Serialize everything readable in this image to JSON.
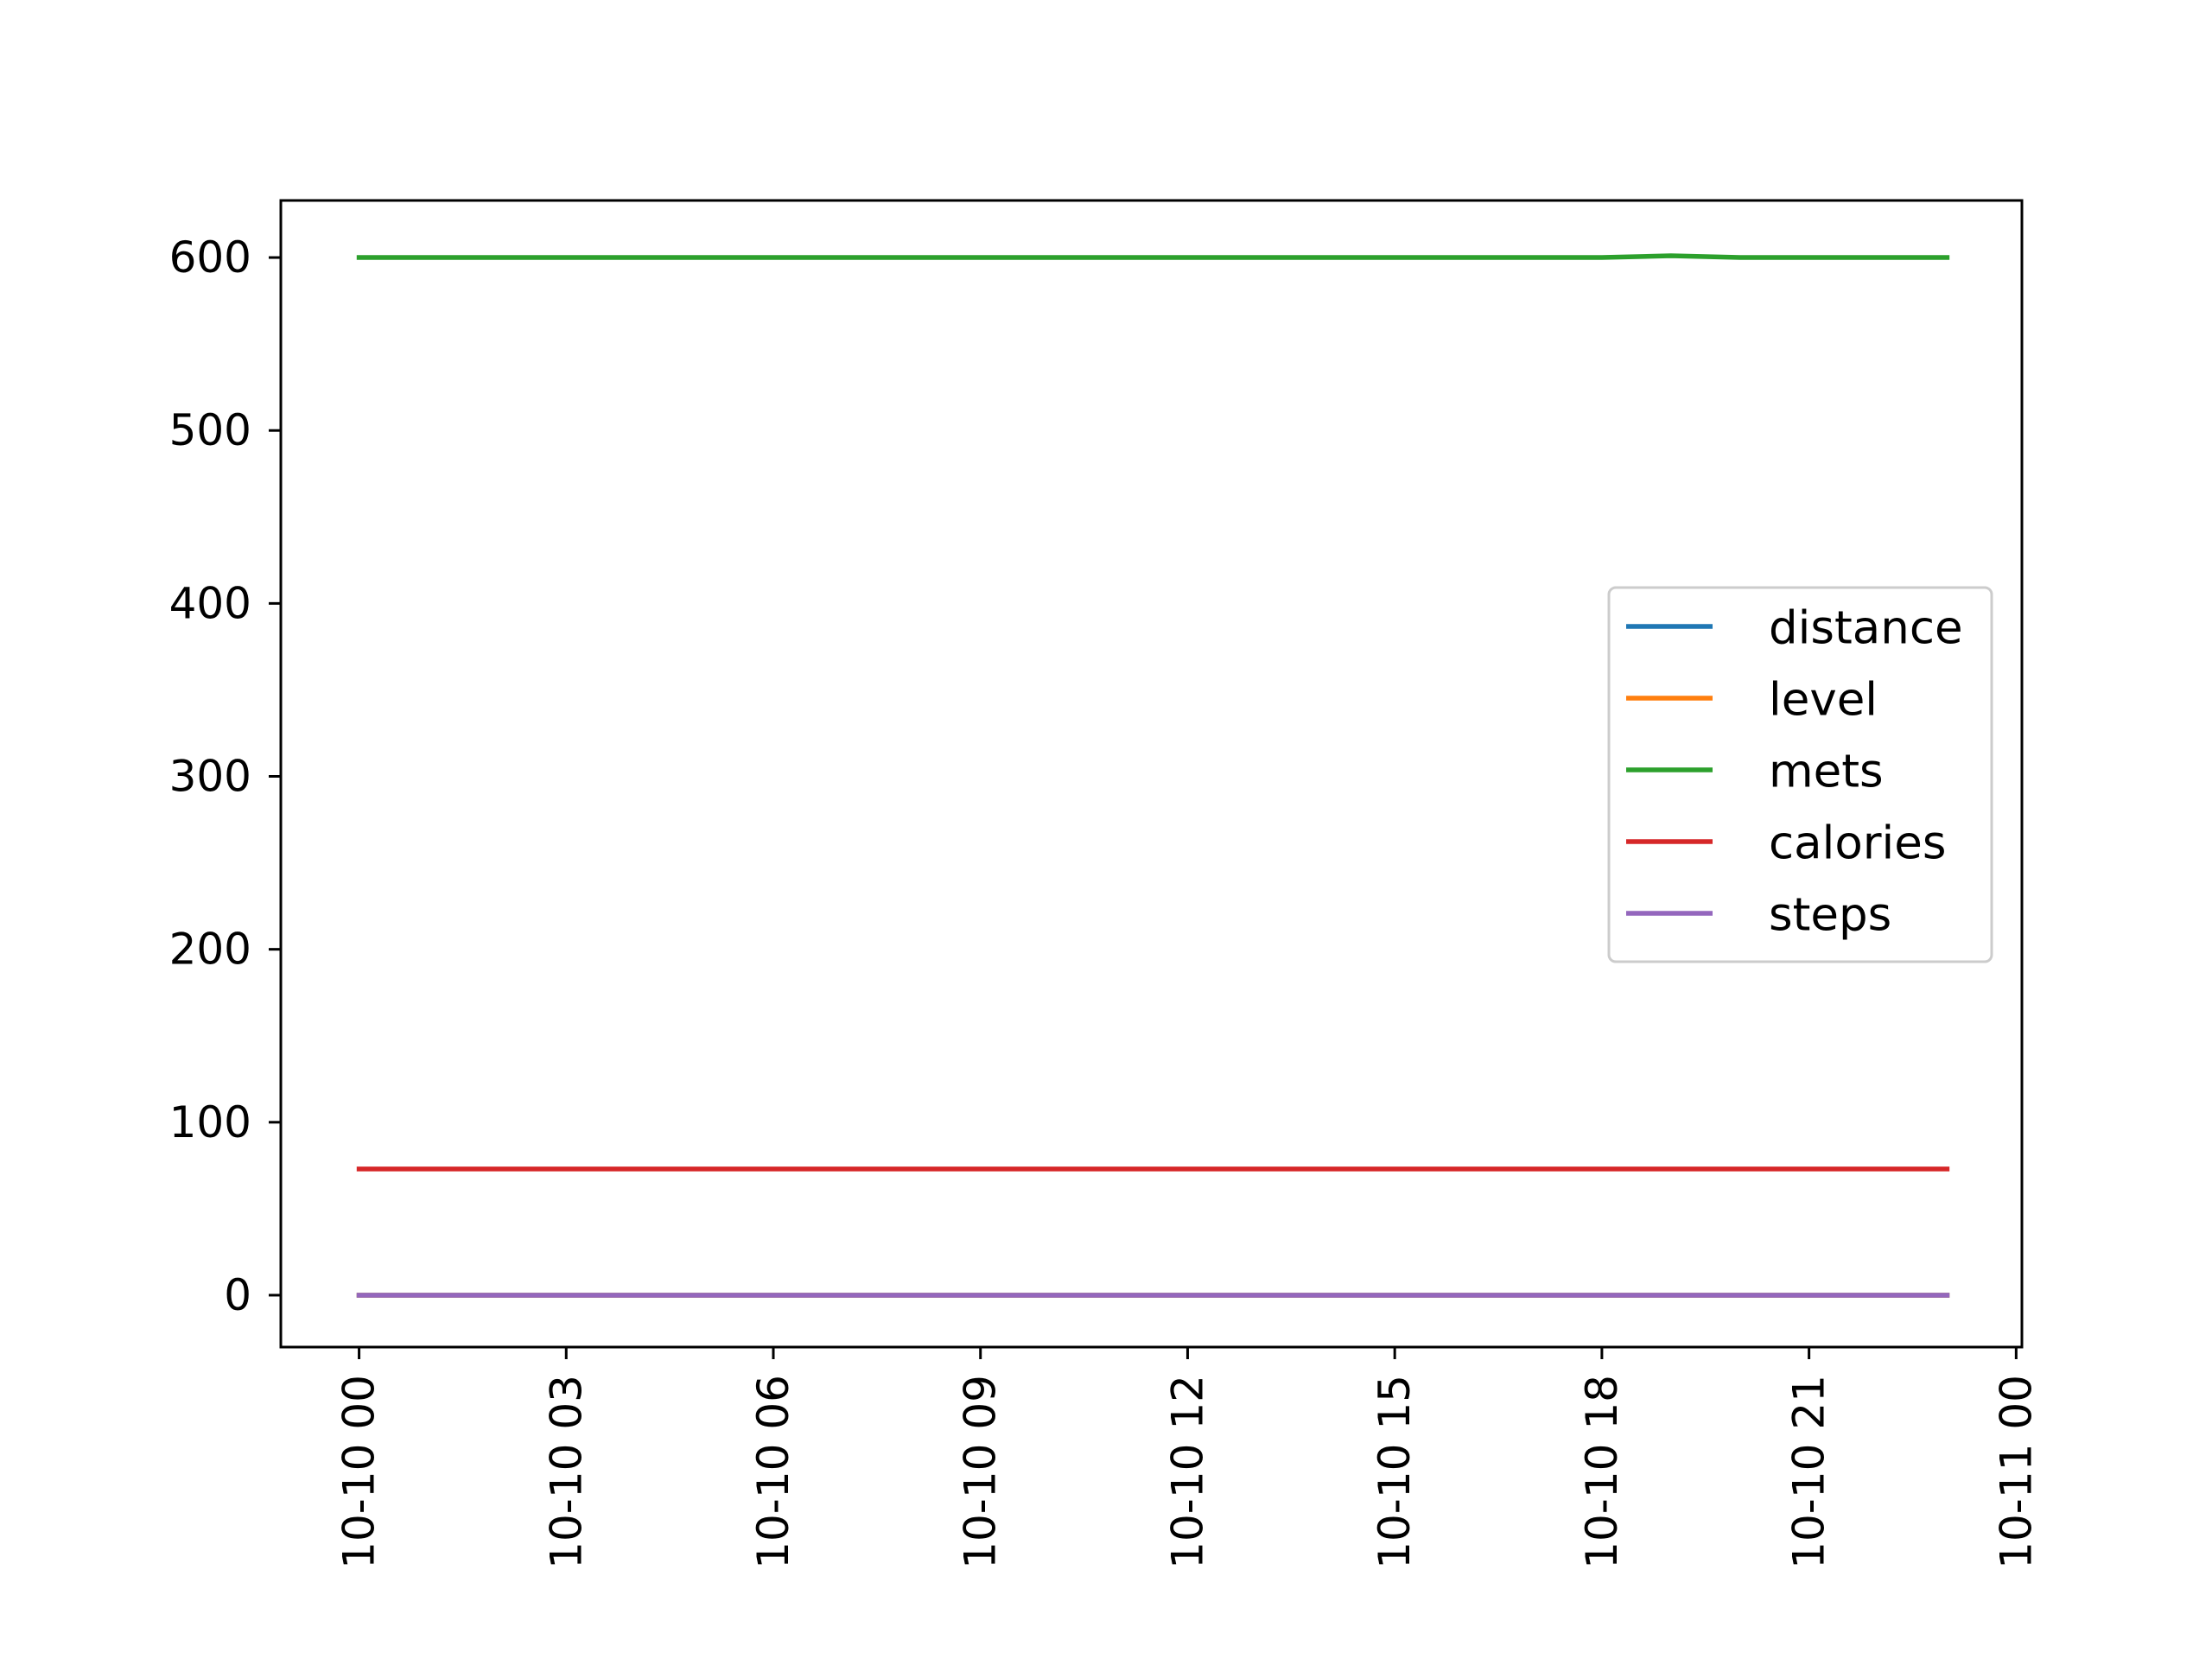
{
  "chart_data": {
    "type": "line",
    "title": "",
    "xlabel": "",
    "ylabel": "",
    "x": [
      "10-10 00:00",
      "10-10 01:00",
      "10-10 02:00",
      "10-10 03:00",
      "10-10 04:00",
      "10-10 05:00",
      "10-10 06:00",
      "10-10 07:00",
      "10-10 08:00",
      "10-10 09:00",
      "10-10 10:00",
      "10-10 11:00",
      "10-10 12:00",
      "10-10 13:00",
      "10-10 14:00",
      "10-10 15:00",
      "10-10 16:00",
      "10-10 17:00",
      "10-10 18:00",
      "10-10 19:00",
      "10-10 20:00",
      "10-10 21:00",
      "10-10 22:00",
      "10-10 23:00"
    ],
    "xlim": [
      "10-09 22:52",
      "10-11 00:05"
    ],
    "ylim": [
      -30,
      633
    ],
    "xticks": [
      "10-10 00",
      "10-10 03",
      "10-10 06",
      "10-10 09",
      "10-10 12",
      "10-10 15",
      "10-10 18",
      "10-10 21",
      "10-11 00"
    ],
    "yticks": [
      "0",
      "100",
      "200",
      "300",
      "400",
      "500",
      "600"
    ],
    "legend_position": "center-right",
    "grid": false,
    "series": [
      {
        "name": "distance",
        "color": "#1f77b4",
        "values": [
          0,
          0,
          0,
          0,
          0,
          0,
          0,
          0,
          0,
          0,
          0,
          0,
          0,
          0,
          0,
          0,
          0,
          0,
          0,
          0,
          0,
          0,
          0,
          0
        ]
      },
      {
        "name": "level",
        "color": "#ff7f0e",
        "values": [
          0,
          0,
          0,
          0,
          0,
          0,
          0,
          0,
          0,
          0,
          0,
          0,
          0,
          0,
          0,
          0,
          0,
          0,
          0,
          0,
          0,
          0,
          0,
          0
        ]
      },
      {
        "name": "mets",
        "color": "#2ca02c",
        "values": [
          600,
          600,
          600,
          600,
          600,
          600,
          600,
          600,
          600,
          600,
          600,
          600,
          600,
          600,
          600,
          600,
          600,
          600,
          600,
          601,
          600,
          600,
          600,
          600
        ]
      },
      {
        "name": "calories",
        "color": "#d62728",
        "values": [
          73,
          73,
          73,
          73,
          73,
          73,
          73,
          73,
          73,
          73,
          73,
          73,
          73,
          73,
          73,
          73,
          73,
          73,
          73,
          73,
          73,
          73,
          73,
          73
        ]
      },
      {
        "name": "steps",
        "color": "#9467bd",
        "values": [
          0,
          0,
          0,
          0,
          0,
          0,
          0,
          0,
          0,
          0,
          0,
          0,
          0,
          0,
          0,
          0,
          0,
          0,
          0,
          0,
          0,
          0,
          0,
          0
        ]
      }
    ]
  }
}
